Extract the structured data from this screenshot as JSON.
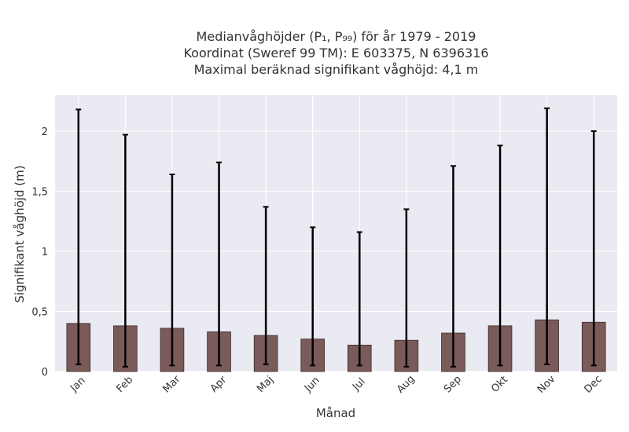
{
  "chart_data": {
    "type": "bar",
    "title_lines": [
      "Medianvåghöjder (P₁, P₉₉) för år 1979 - 2019",
      "Koordinat (Sweref 99 TM): E 603375, N 6396316",
      "Maximal beräknad signifikant våghöjd: 4,1 m"
    ],
    "xlabel": "Månad",
    "ylabel": "Signifikant våghöjd (m)",
    "ylim": [
      0,
      2.3
    ],
    "yticks": [
      0,
      0.5,
      1,
      1.5,
      2
    ],
    "ytick_labels": [
      "0",
      "0,5",
      "1",
      "1,5",
      "2"
    ],
    "categories": [
      "Jan",
      "Feb",
      "Mar",
      "Apr",
      "Maj",
      "Jun",
      "Jul",
      "Aug",
      "Sep",
      "Okt",
      "Nov",
      "Dec"
    ],
    "values": [
      0.4,
      0.38,
      0.36,
      0.33,
      0.3,
      0.27,
      0.22,
      0.26,
      0.32,
      0.38,
      0.43,
      0.41
    ],
    "error_low": [
      0.06,
      0.04,
      0.05,
      0.05,
      0.06,
      0.05,
      0.05,
      0.04,
      0.04,
      0.05,
      0.06,
      0.05
    ],
    "error_high": [
      2.18,
      1.97,
      1.64,
      1.74,
      1.37,
      1.2,
      1.16,
      1.35,
      1.71,
      1.88,
      2.19,
      2.0
    ],
    "grid": true,
    "colors": {
      "bar": "#7b5a5a",
      "bar_edge": "#3a2a2a",
      "error": "#000000",
      "plot_bg": "#eaeaf2",
      "grid": "#ffffff"
    }
  }
}
